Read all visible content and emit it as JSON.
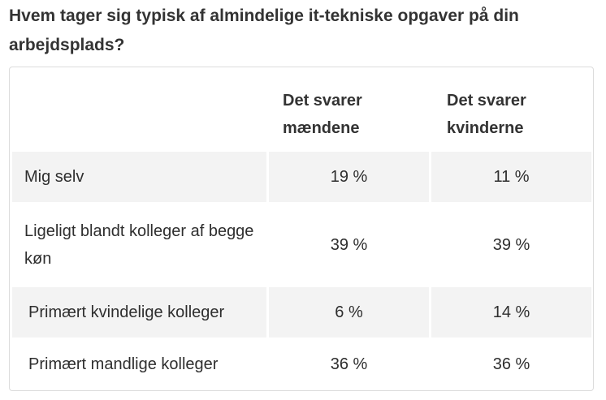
{
  "question": "Hvem tager sig typisk af almindelige it-tekniske opgaver på din arbejdsplads?",
  "table": {
    "columns": [
      "",
      "Det svarer mændene",
      "Det svarer kvinderne"
    ],
    "rows": [
      {
        "label": "Mig selv",
        "men": "19 %",
        "women": "11 %"
      },
      {
        "label": "Ligeligt blandt kolleger af begge køn",
        "men": "39 %",
        "women": "39 %"
      },
      {
        "label": "Primært kvindelige kolleger",
        "men": "6 %",
        "women": "14 %"
      },
      {
        "label": "Primært mandlige kolleger",
        "men": "36 %",
        "women": "36 %"
      }
    ]
  }
}
